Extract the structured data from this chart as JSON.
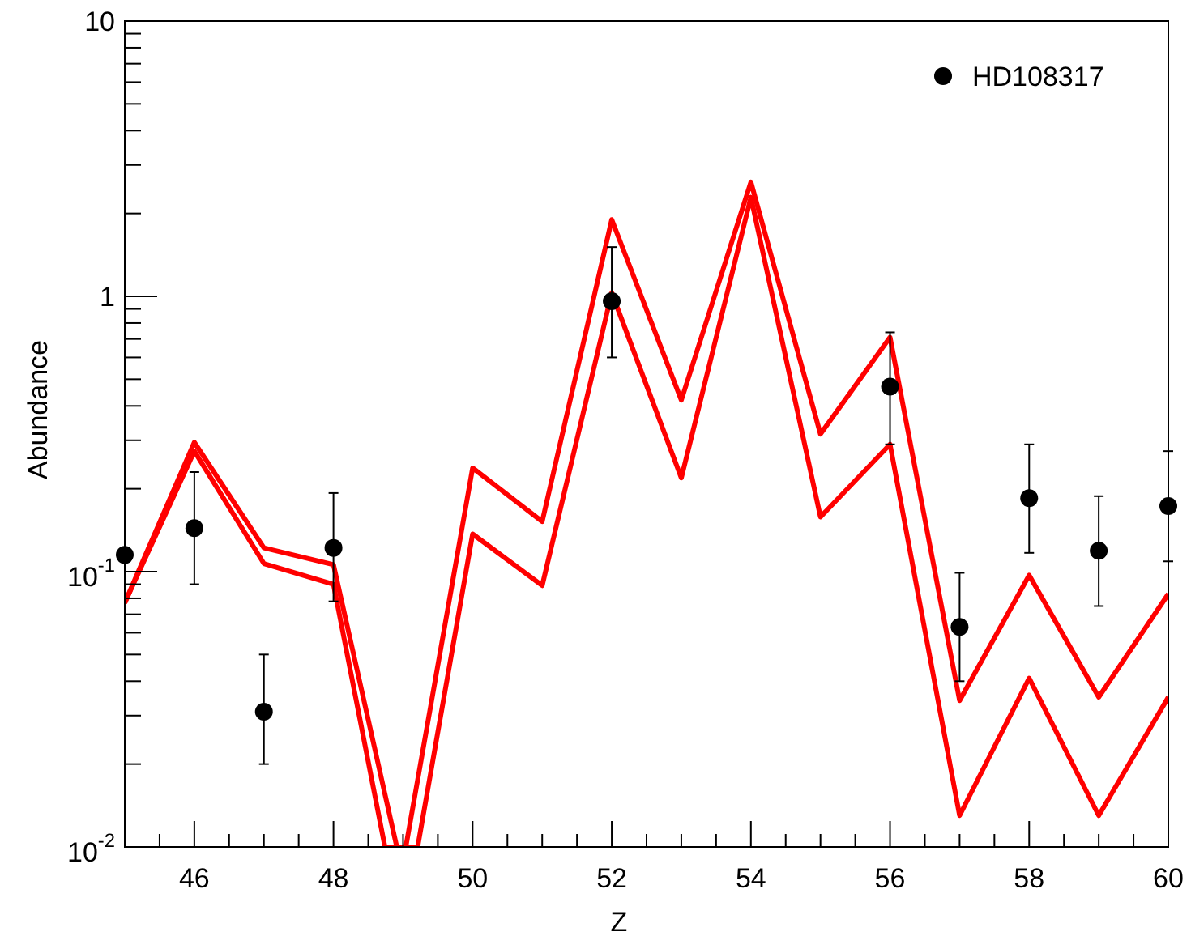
{
  "chart_data": {
    "type": "line",
    "xlabel": "Z",
    "ylabel": "Abundance",
    "log": "y",
    "xlim": [
      45,
      60
    ],
    "ylim": [
      0.01,
      10
    ],
    "xticks": [
      {
        "value": 45,
        "label": null
      },
      {
        "value": 45.5,
        "label": null
      },
      46,
      {
        "value": 46.5,
        "label": null
      },
      {
        "value": 47,
        "label": null
      },
      {
        "value": 47.5,
        "label": null
      },
      48,
      {
        "value": 48.5,
        "label": null
      },
      {
        "value": 49,
        "label": null
      },
      {
        "value": 49.5,
        "label": null
      },
      50,
      {
        "value": 50.5,
        "label": null
      },
      {
        "value": 51,
        "label": null
      },
      {
        "value": 51.5,
        "label": null
      },
      52,
      {
        "value": 52.5,
        "label": null
      },
      {
        "value": 53,
        "label": null
      },
      {
        "value": 53.5,
        "label": null
      },
      54,
      {
        "value": 54.5,
        "label": null
      },
      {
        "value": 55,
        "label": null
      },
      {
        "value": 55.5,
        "label": null
      },
      56,
      {
        "value": 56.5,
        "label": null
      },
      {
        "value": 57,
        "label": null
      },
      {
        "value": 57.5,
        "label": null
      },
      58,
      {
        "value": 58.5,
        "label": null
      },
      {
        "value": 59,
        "label": null
      },
      {
        "value": 59.5,
        "label": null
      },
      60
    ],
    "yticks": [
      {
        "value": 0.01,
        "label": "10$^{-2}$"
      },
      {
        "value": 0.02,
        "label": null
      },
      {
        "value": 0.03,
        "label": null
      },
      {
        "value": 0.04,
        "label": null
      },
      {
        "value": 0.05,
        "label": null
      },
      {
        "value": 0.06,
        "label": null
      },
      {
        "value": 0.07,
        "label": null
      },
      {
        "value": 0.08,
        "label": null
      },
      {
        "value": 0.09,
        "label": null
      },
      {
        "value": 0.1,
        "label": "10$^{-1}$"
      },
      {
        "value": 0.2,
        "label": null
      },
      {
        "value": 0.3,
        "label": null
      },
      {
        "value": 0.4,
        "label": null
      },
      {
        "value": 0.5,
        "label": null
      },
      {
        "value": 0.6,
        "label": null
      },
      {
        "value": 0.7,
        "label": null
      },
      {
        "value": 0.8,
        "label": null
      },
      {
        "value": 0.9,
        "label": null
      },
      1,
      {
        "value": 2,
        "label": null
      },
      {
        "value": 3,
        "label": null
      },
      {
        "value": 4,
        "label": null
      },
      {
        "value": 5,
        "label": null
      },
      {
        "value": 6,
        "label": null
      },
      {
        "value": 7,
        "label": null
      },
      {
        "value": 8,
        "label": null
      },
      {
        "value": 9,
        "label": null
      },
      10
    ],
    "grid": false,
    "legend": "top right",
    "series": [
      {
        "color": "#ff0000",
        "x": [
          45,
          46,
          47,
          48,
          48.91,
          49.04,
          50,
          51,
          52,
          53,
          54,
          55,
          56,
          57,
          58,
          59,
          60
        ],
        "values": [
          0.077,
          0.295,
          0.122,
          0.106,
          0.01,
          0.01,
          0.238,
          0.152,
          1.9,
          0.42,
          2.6,
          0.316,
          0.71,
          0.034,
          0.097,
          0.035,
          0.083
        ]
      },
      {
        "color": "#ff0000",
        "x": [
          45,
          46,
          47,
          48,
          48.74,
          49.21,
          50,
          51,
          52,
          53,
          54,
          55,
          56,
          57,
          58,
          59,
          60
        ],
        "values": [
          0.077,
          0.274,
          0.107,
          0.09,
          0.01,
          0.01,
          0.137,
          0.089,
          1.03,
          0.219,
          2.29,
          0.158,
          0.29,
          0.013,
          0.041,
          0.013,
          0.035
        ]
      },
      {
        "type": "scatter",
        "name": "HD108317",
        "color": "#000000",
        "marker": "circle",
        "x": [
          45,
          46,
          47,
          48,
          52,
          56,
          57,
          58,
          59,
          60
        ],
        "values": [
          0.115,
          0.144,
          0.031,
          0.122,
          0.96,
          0.47,
          0.063,
          0.185,
          0.119,
          0.173
        ],
        "errors": [
          null,
          [
            0.09,
            0.23
          ],
          [
            0.02,
            0.05
          ],
          [
            0.078,
            0.193
          ],
          [
            0.6,
            1.51
          ],
          [
            0.29,
            0.74
          ],
          [
            0.04,
            0.099
          ],
          [
            0.117,
            0.29
          ],
          [
            0.075,
            0.188
          ],
          [
            0.109,
            0.274
          ]
        ]
      }
    ]
  }
}
